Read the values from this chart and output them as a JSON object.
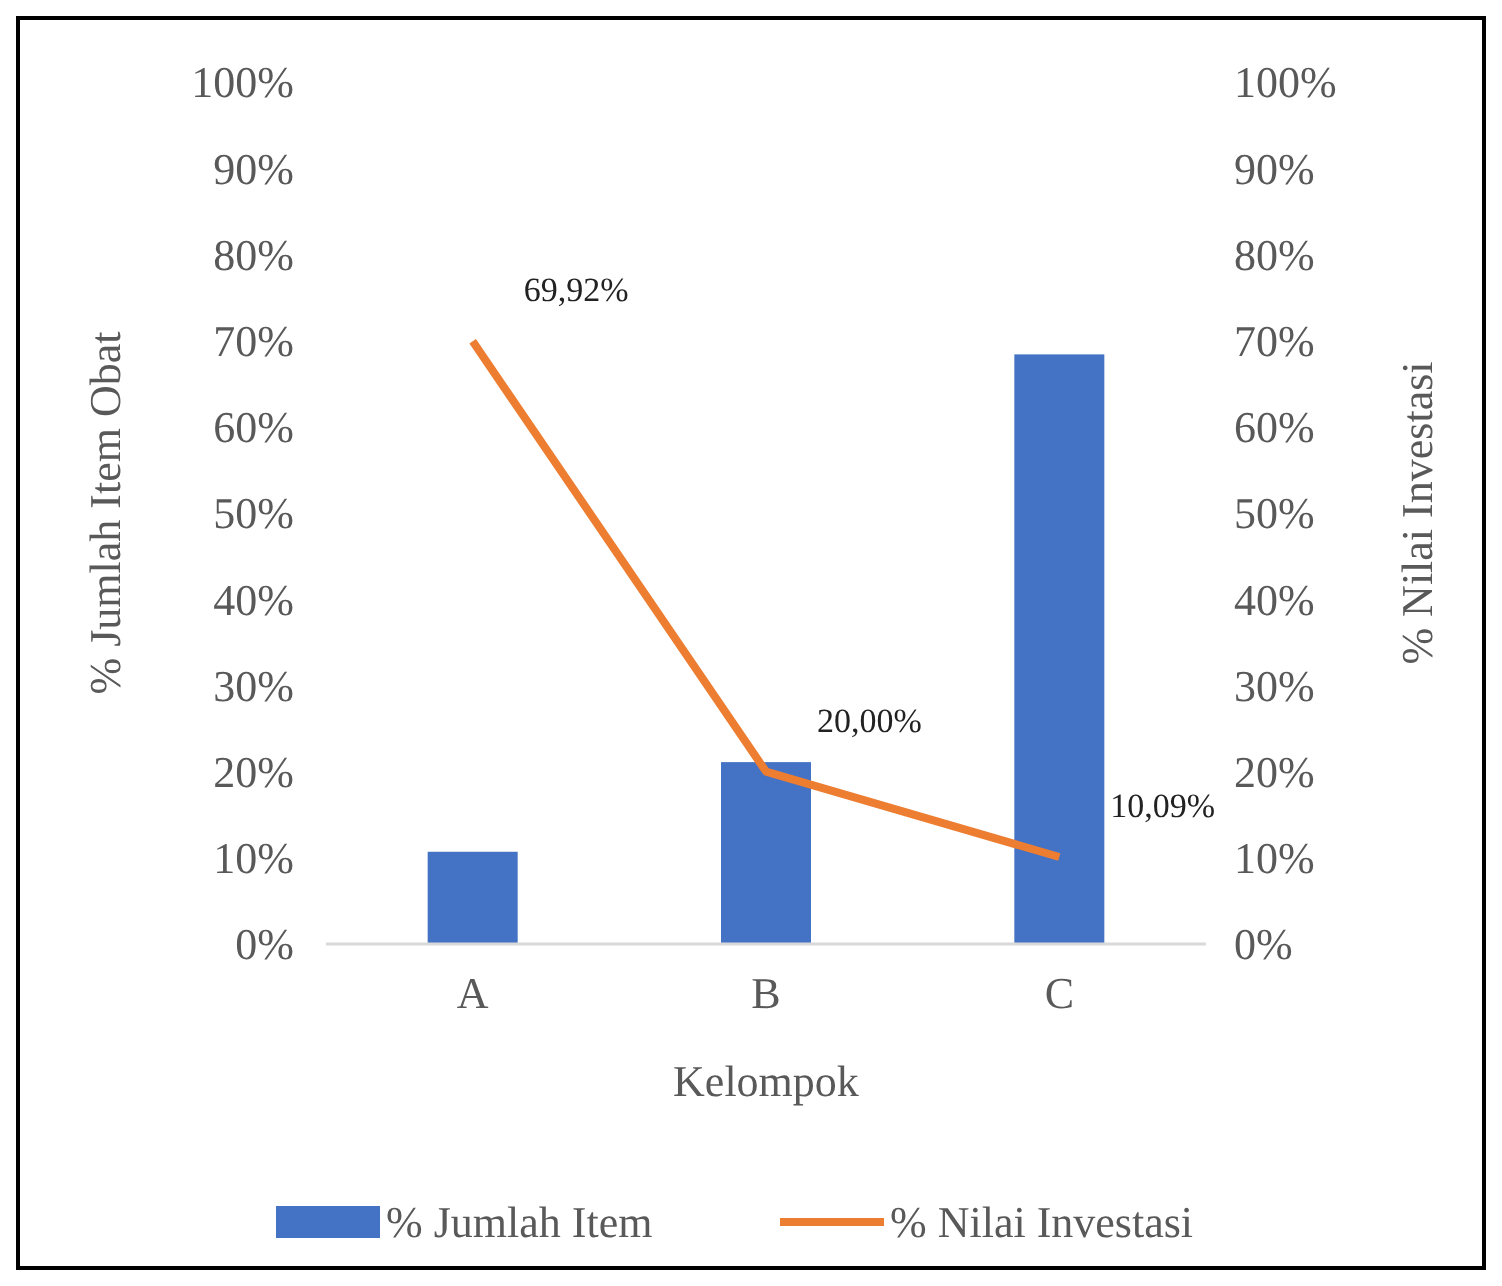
{
  "chart_data": {
    "type": "bar",
    "xlabel": "Kelompok",
    "ylabel": "% Jumlah Item Obat",
    "y2label": "% Nilai Investasi",
    "categories": [
      "A",
      "B",
      "C"
    ],
    "series": [
      {
        "name": "% Jumlah Item",
        "color": "#4472c4",
        "values": [
          10.7,
          21.1,
          68.4
        ]
      },
      {
        "name": "% Nilai Investasi",
        "type": "line",
        "axis": "y2",
        "color": "#ed7d31",
        "values": [
          69.92,
          20.0,
          10.09
        ],
        "value_labels": [
          "69,92%",
          "20,00%",
          "10,09%"
        ]
      }
    ],
    "ylim": [
      0,
      100
    ],
    "yticks": [
      {
        "value": 0,
        "label": "0%"
      },
      {
        "value": 10,
        "label": "10%"
      },
      {
        "value": 20,
        "label": "20%"
      },
      {
        "value": 30,
        "label": "30%"
      },
      {
        "value": 40,
        "label": "40%"
      },
      {
        "value": 50,
        "label": "50%"
      },
      {
        "value": 60,
        "label": "60%"
      },
      {
        "value": 70,
        "label": "70%"
      },
      {
        "value": 80,
        "label": "80%"
      },
      {
        "value": 90,
        "label": "90%"
      },
      {
        "value": 100,
        "label": "100%"
      }
    ],
    "y2lim": [
      0,
      100
    ],
    "y2ticks": [
      {
        "value": 0,
        "label": "0%"
      },
      {
        "value": 10,
        "label": "10%"
      },
      {
        "value": 20,
        "label": "20%"
      },
      {
        "value": 30,
        "label": "30%"
      },
      {
        "value": 40,
        "label": "40%"
      },
      {
        "value": 50,
        "label": "50%"
      },
      {
        "value": 60,
        "label": "60%"
      },
      {
        "value": 70,
        "label": "70%"
      },
      {
        "value": 80,
        "label": "80%"
      },
      {
        "value": 90,
        "label": "90%"
      },
      {
        "value": 100,
        "label": "100%"
      }
    ],
    "legend": "bottom"
  }
}
